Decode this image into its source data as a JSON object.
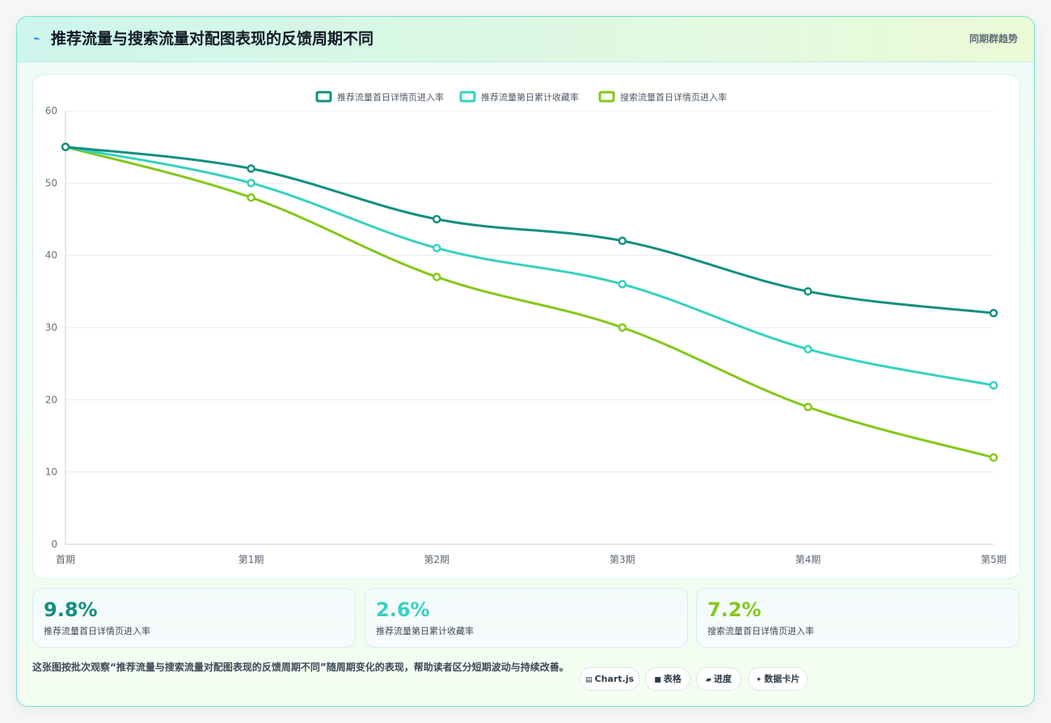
{
  "header": {
    "title": "推荐流量与搜索流量对配图表现的反馈周期不同",
    "tag": "同期群趋势"
  },
  "chart_data": {
    "type": "line",
    "categories": [
      "首期",
      "第1期",
      "第2期",
      "第3期",
      "第4期",
      "第5期"
    ],
    "ylim": [
      0,
      60
    ],
    "yticks": [
      "0",
      "10",
      "20",
      "30",
      "40",
      "50",
      "60"
    ],
    "grid": true,
    "legend_position": "top-center",
    "series": [
      {
        "name": "推荐流量首日详情页进入率",
        "color": "#128f80",
        "values": [
          55,
          52,
          45,
          42,
          35,
          32
        ]
      },
      {
        "name": "推荐流量第日累计收藏率",
        "color": "#36d1c0",
        "values": [
          55,
          50,
          41,
          36,
          27,
          22
        ]
      },
      {
        "name": "搜索流量首日详情页进入率",
        "color": "#84c81a",
        "values": [
          55,
          48,
          37,
          30,
          19,
          12
        ]
      }
    ]
  },
  "stats": [
    {
      "value": "9.8%",
      "label": "推荐流量首日详情页进入率",
      "color": "#128f80"
    },
    {
      "value": "2.6%",
      "label": "推荐流量第日累计收藏率",
      "color": "#36d1c0"
    },
    {
      "value": "7.2%",
      "label": "搜索流量首日详情页进入率",
      "color": "#84c81a"
    }
  ],
  "note": "这张图按批次观察“推荐流量与搜索流量对配图表现的反馈周期不同”随周期变化的表现，帮助读者区分短期波动与持续改善。",
  "pills": [
    {
      "glyph": "▤",
      "icon": "chart-icon",
      "label": "Chart.js"
    },
    {
      "glyph": "■",
      "icon": "table-icon",
      "label": "表格"
    },
    {
      "glyph": "▰",
      "icon": "progress-icon",
      "label": "进度"
    },
    {
      "glyph": "✦",
      "icon": "sparkle-icon",
      "label": "数据卡片"
    }
  ]
}
